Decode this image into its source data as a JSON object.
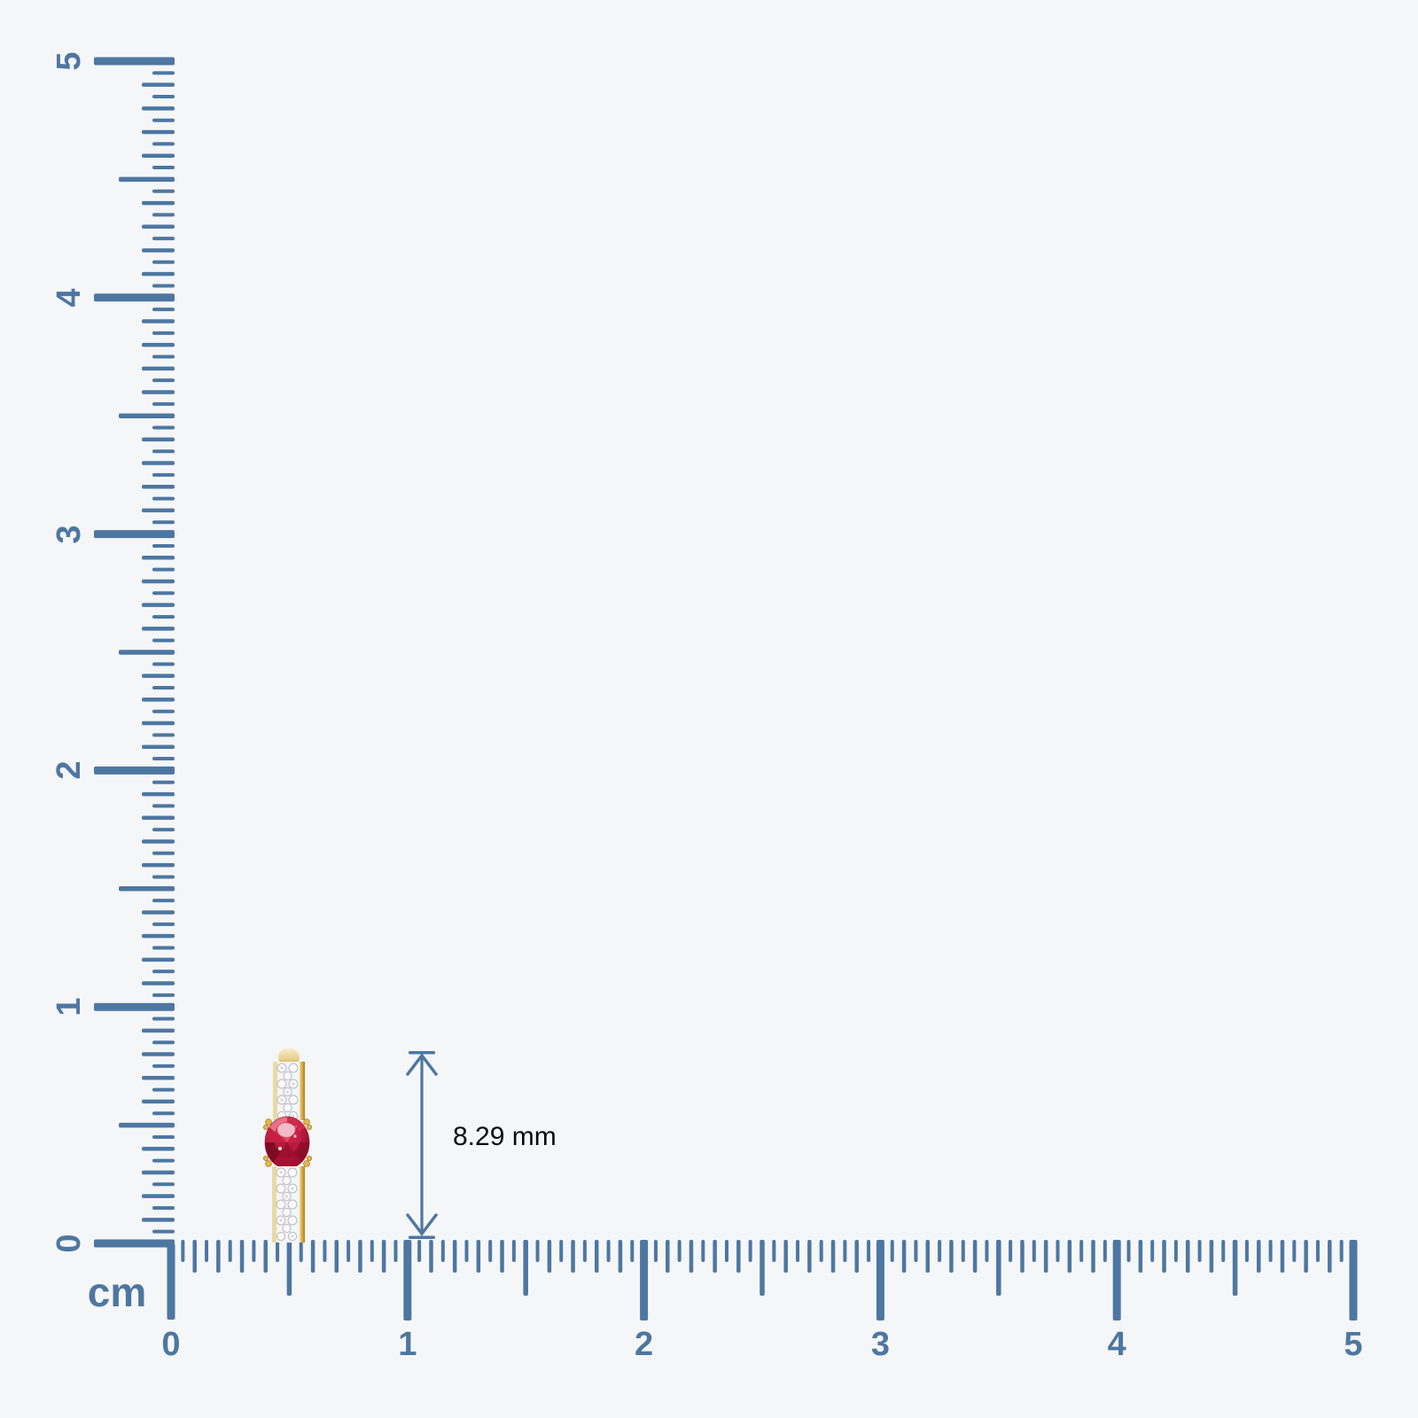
{
  "page": {
    "background_color": "#f5f6f8"
  },
  "ruler": {
    "unit_label": "cm",
    "tick_color": "#4d77a1",
    "label_color": "#4d77a1",
    "vertical_labels": [
      "0",
      "1",
      "2",
      "3",
      "4",
      "5"
    ],
    "horizontal_labels": [
      "0",
      "1",
      "2",
      "3",
      "4",
      "5"
    ]
  },
  "measurement": {
    "value_label": "8.29 mm",
    "text_color": "#0a0a0a",
    "arrow_color": "#4d77a1"
  },
  "jewelry": {
    "item": "oval-red-gemstone-diamond-pave-hoop-earring",
    "stone_color": "#b01734",
    "metal_color": "#d9ad4a",
    "pave_color": "#f5f5f8"
  }
}
